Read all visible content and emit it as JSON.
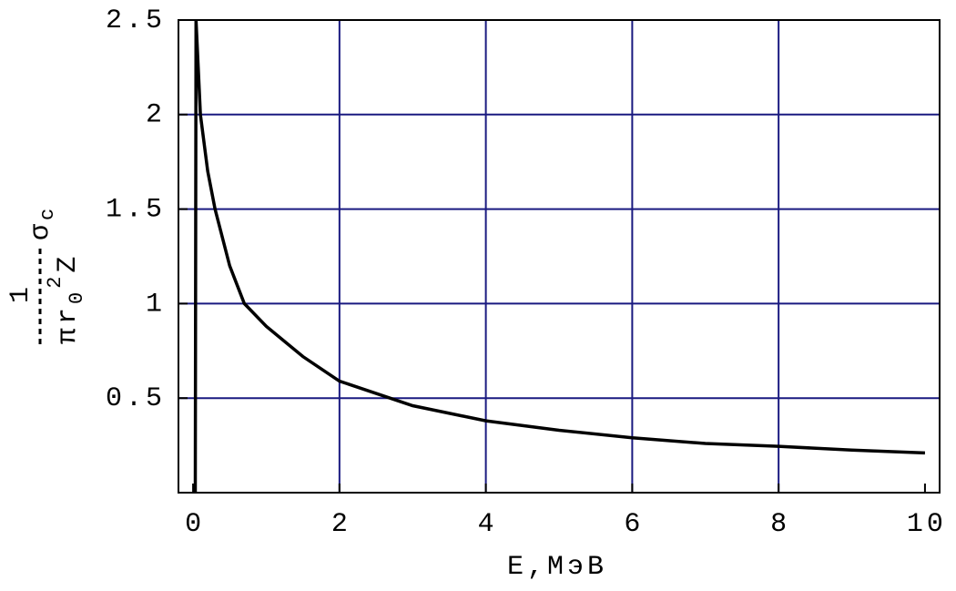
{
  "chart_data": {
    "type": "line",
    "x": [
      0.03,
      0.04,
      0.1,
      0.2,
      0.3,
      0.5,
      0.7,
      1,
      1.5,
      2,
      3,
      4,
      5,
      6,
      7,
      8,
      9,
      10
    ],
    "values": [
      0,
      2.5,
      2.0,
      1.7,
      1.5,
      1.2,
      1.0,
      0.88,
      0.72,
      0.59,
      0.46,
      0.38,
      0.33,
      0.29,
      0.26,
      0.245,
      0.225,
      0.21
    ],
    "color": "#000000",
    "grid_color": "#1a1a80",
    "xlim": [
      -0.2,
      10.2
    ],
    "xticks": [
      0,
      2,
      4,
      6,
      8,
      10
    ],
    "ylim": [
      0,
      2.5
    ],
    "yticks": [
      0.5,
      1,
      1.5,
      2,
      2.5
    ],
    "xgrid": [
      2,
      4,
      6,
      8
    ],
    "ygrid": [
      0.5,
      1,
      1.5,
      2
    ],
    "xlabel": "E,МэВ",
    "ylabel": {
      "numerator": "1",
      "denominator": "πr",
      "subscript": "0",
      "superscript": "2",
      "tail": "Z",
      "symbol": "σ",
      "symbol_subscript": "c"
    }
  }
}
